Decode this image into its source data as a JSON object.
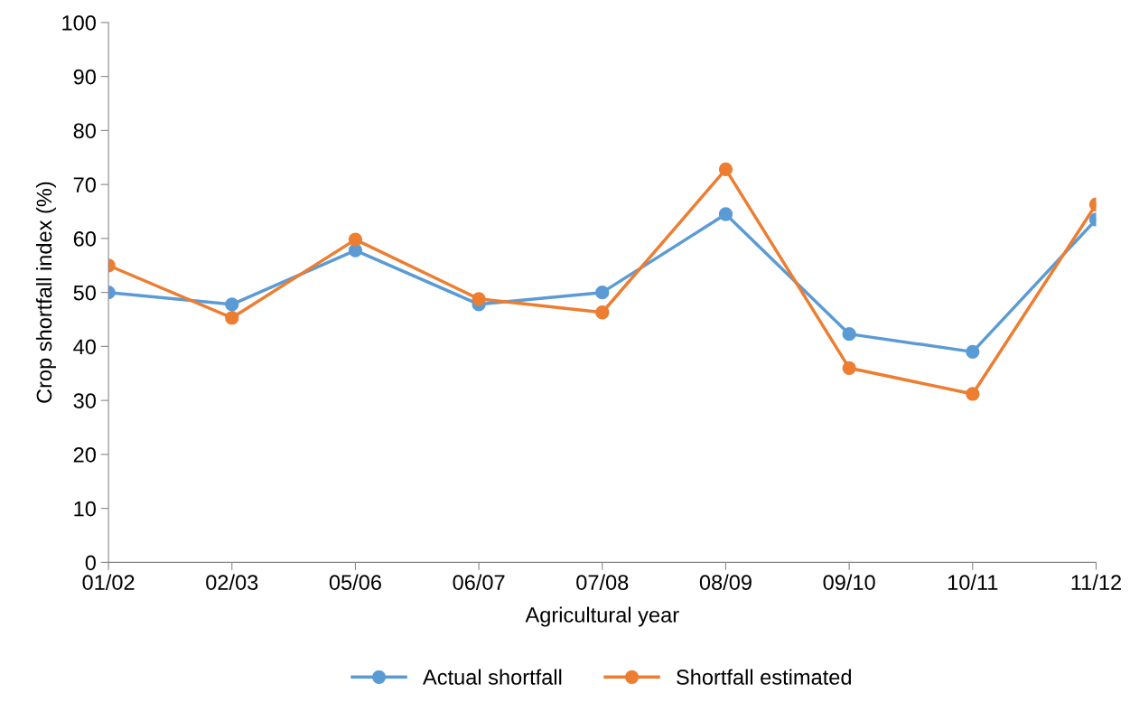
{
  "chart_data": {
    "type": "line",
    "xlabel": "Agricultural year",
    "ylabel": "Crop shortfall index (%)",
    "categories": [
      "01/02",
      "02/03",
      "05/06",
      "06/07",
      "07/08",
      "08/09",
      "09/10",
      "10/11",
      "11/12"
    ],
    "series": [
      {
        "name": "Actual shortfall",
        "color": "#5b9bd5",
        "values": [
          50,
          47.8,
          57.8,
          47.8,
          50,
          64.5,
          42.3,
          39,
          63.5
        ]
      },
      {
        "name": "Shortfall estimated",
        "color": "#ed7d31",
        "values": [
          55,
          45.3,
          59.8,
          48.8,
          46.3,
          72.8,
          36,
          31.2,
          66.3
        ]
      }
    ],
    "ylim": [
      0,
      100
    ],
    "yticks": [
      0,
      10,
      20,
      30,
      40,
      50,
      60,
      70,
      80,
      90,
      100
    ],
    "grid": false,
    "legend": "bottom",
    "marker": "circle",
    "line_style": "solid"
  }
}
